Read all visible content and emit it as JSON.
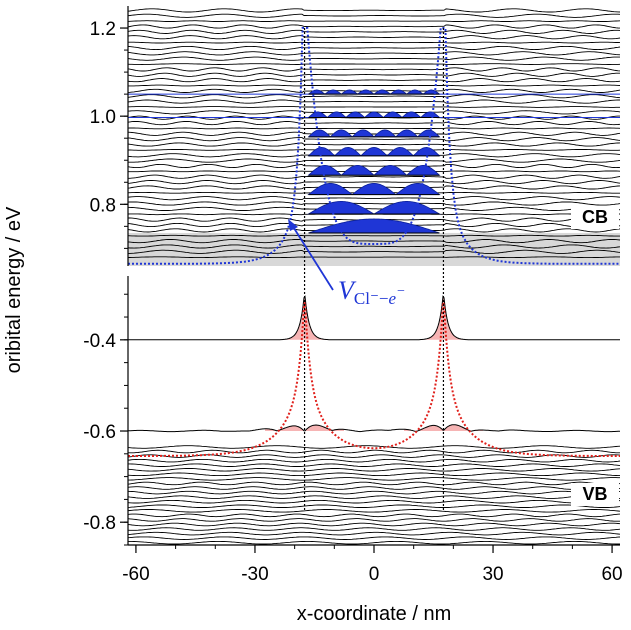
{
  "chart_data": {
    "type": "line",
    "title": "",
    "xlabel": "x-coordinate / nm",
    "ylabel": "oribital energy / eV",
    "x_ticks": [
      -60,
      -30,
      0,
      30,
      60
    ],
    "x_range": [
      -62,
      62
    ],
    "panels": [
      {
        "name": "CB",
        "label": "CB",
        "ylim": [
          0.66,
          1.25
        ],
        "y_ticks": [
          0.8,
          1.0,
          1.2
        ],
        "y_tick_labels": [
          "0.8",
          "1.0",
          "1.2"
        ],
        "potential": {
          "color": "#1f36d6",
          "well_half_width_nm": 18,
          "top_eV": 1.2,
          "bottom_eV": 0.665
        },
        "bound_levels_eV": [
          0.735,
          0.778,
          0.822,
          0.866,
          0.91,
          0.953,
          0.997,
          1.05
        ],
        "continuum_levels_eV": [
          0.68,
          1.24
        ]
      },
      {
        "name": "VB",
        "label": "VB",
        "ylim": [
          -0.85,
          -0.26
        ],
        "y_ticks": [
          -0.4,
          -0.6,
          -0.8
        ],
        "y_tick_labels": [
          "-0.4",
          "-0.6",
          "-0.8"
        ],
        "potential": {
          "color": "#e0201b",
          "centers_nm": [
            -17.5,
            17.5
          ],
          "peak_eV": -0.3,
          "baseline_eV": -0.655
        },
        "localized_levels_eV": [
          -0.4,
          -0.6
        ],
        "continuum_levels_eV": [
          -0.845,
          -0.635
        ]
      }
    ],
    "dotted_guides_x_nm": [
      -17.5,
      17.5
    ],
    "annotation": {
      "base": "V",
      "sub": "Cl⁻−",
      "sub_italic": "e",
      "sup": "−"
    }
  }
}
